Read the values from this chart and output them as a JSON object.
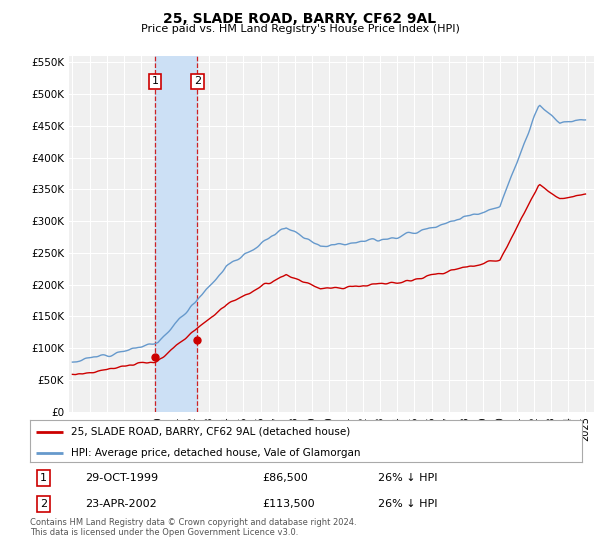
{
  "title": "25, SLADE ROAD, BARRY, CF62 9AL",
  "subtitle": "Price paid vs. HM Land Registry's House Price Index (HPI)",
  "ylim": [
    0,
    560000
  ],
  "yticks": [
    0,
    50000,
    100000,
    150000,
    200000,
    250000,
    300000,
    350000,
    400000,
    450000,
    500000,
    550000
  ],
  "xlim_start": 1994.8,
  "xlim_end": 2025.5,
  "sale1_x": 1999.83,
  "sale1_y": 86500,
  "sale2_x": 2002.31,
  "sale2_y": 113500,
  "sale1_label": "29-OCT-1999",
  "sale1_price": "£86,500",
  "sale1_hpi": "26% ↓ HPI",
  "sale2_label": "23-APR-2002",
  "sale2_price": "£113,500",
  "sale2_hpi": "26% ↓ HPI",
  "legend_line1": "25, SLADE ROAD, BARRY, CF62 9AL (detached house)",
  "legend_line2": "HPI: Average price, detached house, Vale of Glamorgan",
  "footer": "Contains HM Land Registry data © Crown copyright and database right 2024.\nThis data is licensed under the Open Government Licence v3.0.",
  "line_color_red": "#cc0000",
  "line_color_blue": "#6699cc",
  "background_color": "#ffffff",
  "plot_bg_color": "#f0f0f0",
  "grid_color": "#ffffff",
  "highlight_color": "#cce0f5"
}
